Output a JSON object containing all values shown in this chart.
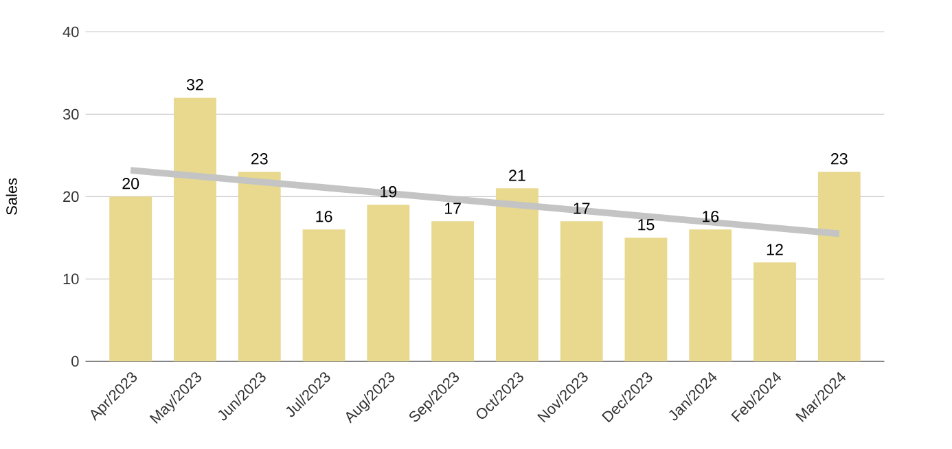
{
  "chart_data": {
    "type": "bar",
    "ylabel": "Sales",
    "categories": [
      "Apr/2023",
      "May/2023",
      "Jun/2023",
      "Jul/2023",
      "Aug/2023",
      "Sep/2023",
      "Oct/2023",
      "Nov/2023",
      "Dec/2023",
      "Jan/2024",
      "Feb/2024",
      "Mar/2024"
    ],
    "series": [
      {
        "color": "#e8d98f",
        "values": [
          20,
          32,
          23,
          16,
          19,
          17,
          21,
          17,
          15,
          16,
          12,
          23
        ],
        "value_labels": [
          "20",
          "32",
          "23",
          "16",
          "19",
          "17",
          "21",
          "17",
          "15",
          "16",
          "12",
          "23"
        ]
      },
      {
        "type": "line",
        "color": "#c4c4c4",
        "values": [
          23.2,
          22.5,
          21.8,
          21.1,
          20.4,
          19.7,
          19.0,
          18.3,
          17.6,
          16.9,
          16.2,
          15.5
        ]
      }
    ],
    "ylim": [
      0,
      40
    ],
    "yticks": [
      0,
      10,
      20,
      30,
      40
    ],
    "grid": "y"
  }
}
